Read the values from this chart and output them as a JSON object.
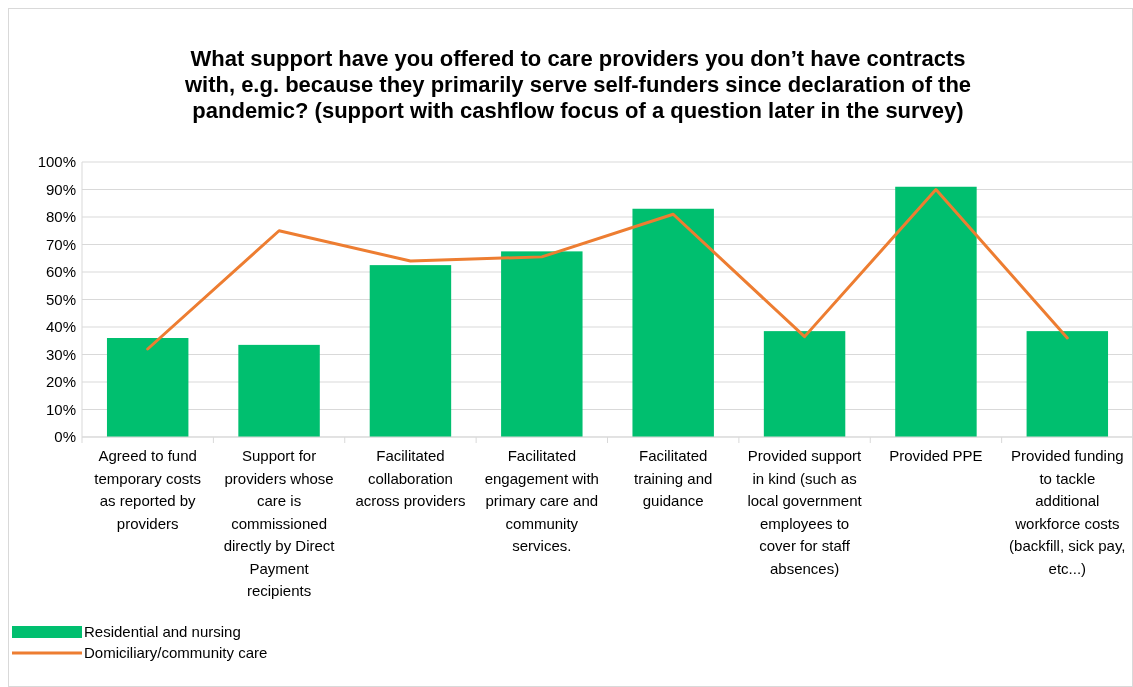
{
  "chart_data": {
    "type": "bar",
    "title": "What support have you offered to care providers you don’t have contracts with, e.g. because they primarily serve self-funders since declaration of the pandemic? (support with cashflow focus of a question later in the survey)",
    "categories": [
      "Agreed to fund temporary costs as reported by providers",
      "Support for providers whose care is commissioned directly by Direct Payment recipients",
      "Facilitated collaboration across providers",
      "Facilitated engagement with primary care and community services.",
      "Facilitated training and guidance",
      "Provided support in kind (such as local government employees to cover for staff absences)",
      "Provided PPE",
      "Provided funding to tackle additional workforce costs (backfill, sick pay, etc...)"
    ],
    "series": [
      {
        "name": "Residential and nursing",
        "color": "#00bf6f",
        "values": [
          36,
          33.5,
          62.5,
          67.5,
          83,
          38.5,
          91,
          38.5
        ]
      },
      {
        "name": "Domiciliary/community care",
        "type": "line",
        "color": "#ed7d31",
        "values": [
          32,
          75,
          64,
          65.5,
          81,
          36.5,
          90,
          36
        ]
      }
    ],
    "ylim": [
      0,
      100
    ],
    "yticks": [
      {
        "value": 0,
        "label": "0%"
      },
      {
        "value": 10,
        "label": "10%"
      },
      {
        "value": 20,
        "label": "20%"
      },
      {
        "value": 30,
        "label": "30%"
      },
      {
        "value": 40,
        "label": "40%"
      },
      {
        "value": 50,
        "label": "50%"
      },
      {
        "value": 60,
        "label": "60%"
      },
      {
        "value": 70,
        "label": "70%"
      },
      {
        "value": 80,
        "label": "80%"
      },
      {
        "value": 90,
        "label": "90%"
      },
      {
        "value": 100,
        "label": "100%"
      }
    ],
    "grid": "y",
    "legend": "bottom left",
    "marker": "none"
  }
}
